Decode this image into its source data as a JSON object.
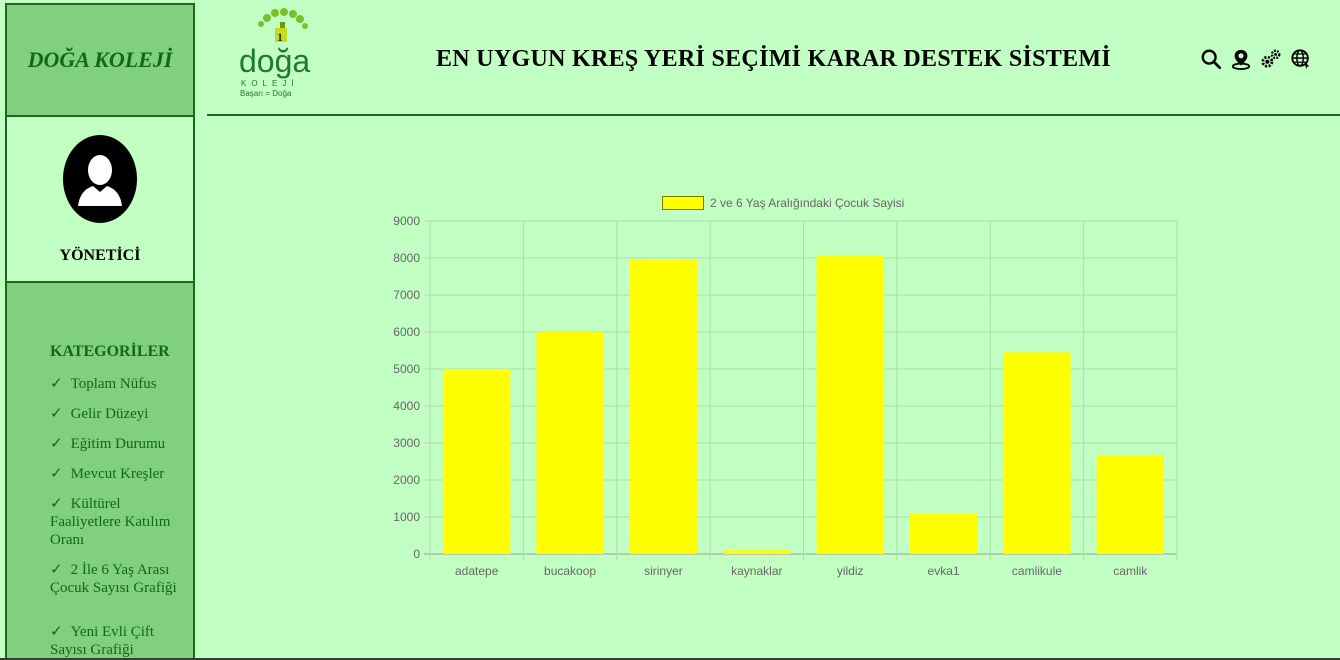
{
  "sidebar": {
    "brand": "DOĞA KOLEJİ",
    "user_role": "YÖNETİCİ",
    "categories_title": "KATEGORİLER",
    "check_glyph": "✓",
    "items": [
      {
        "label": "Toplam Nüfus"
      },
      {
        "label": "Gelir Düzeyi"
      },
      {
        "label": "Eğitim Durumu"
      },
      {
        "label": "Mevcut Kreşler"
      },
      {
        "label": "Kültürel Faaliyetlere Katılım Oranı"
      },
      {
        "label": "2 İle 6 Yaş Arası Çocuk Sayısı Grafiği"
      },
      {
        "label": "Yeni Evli Çift Sayısı Grafiği"
      }
    ]
  },
  "header": {
    "logo_text": "doğa",
    "logo_subtext": "KOLEJİ",
    "logo_slogan": "Başarı = Doğa",
    "title": "EN UYGUN KREŞ YERİ SEÇİMİ KARAR DESTEK SİSTEMİ",
    "icons": [
      "search-icon",
      "map-pin-icon",
      "gears-icon",
      "globe-icon"
    ]
  },
  "colors": {
    "background": "#c2ffc2",
    "sidebar": "#80d080",
    "accent": "#0f6a10",
    "bar": "#ffff00"
  },
  "chart_data": {
    "type": "bar",
    "categories": [
      "adatepe",
      "bucakoop",
      "sirinyer",
      "kaynaklar",
      "yildiz",
      "evka1",
      "camlikule",
      "camlik"
    ],
    "series": [
      {
        "name": "2 ve 6 Yaş Aralığındaki Çocuk Sayisi",
        "values": [
          5000,
          6000,
          7950,
          100,
          8050,
          1080,
          5450,
          2680
        ]
      }
    ],
    "ylim": [
      0,
      9000
    ],
    "yticks": [
      0,
      1000,
      2000,
      3000,
      4000,
      5000,
      6000,
      7000,
      8000,
      9000
    ],
    "grid": true,
    "legend": "top-center"
  }
}
